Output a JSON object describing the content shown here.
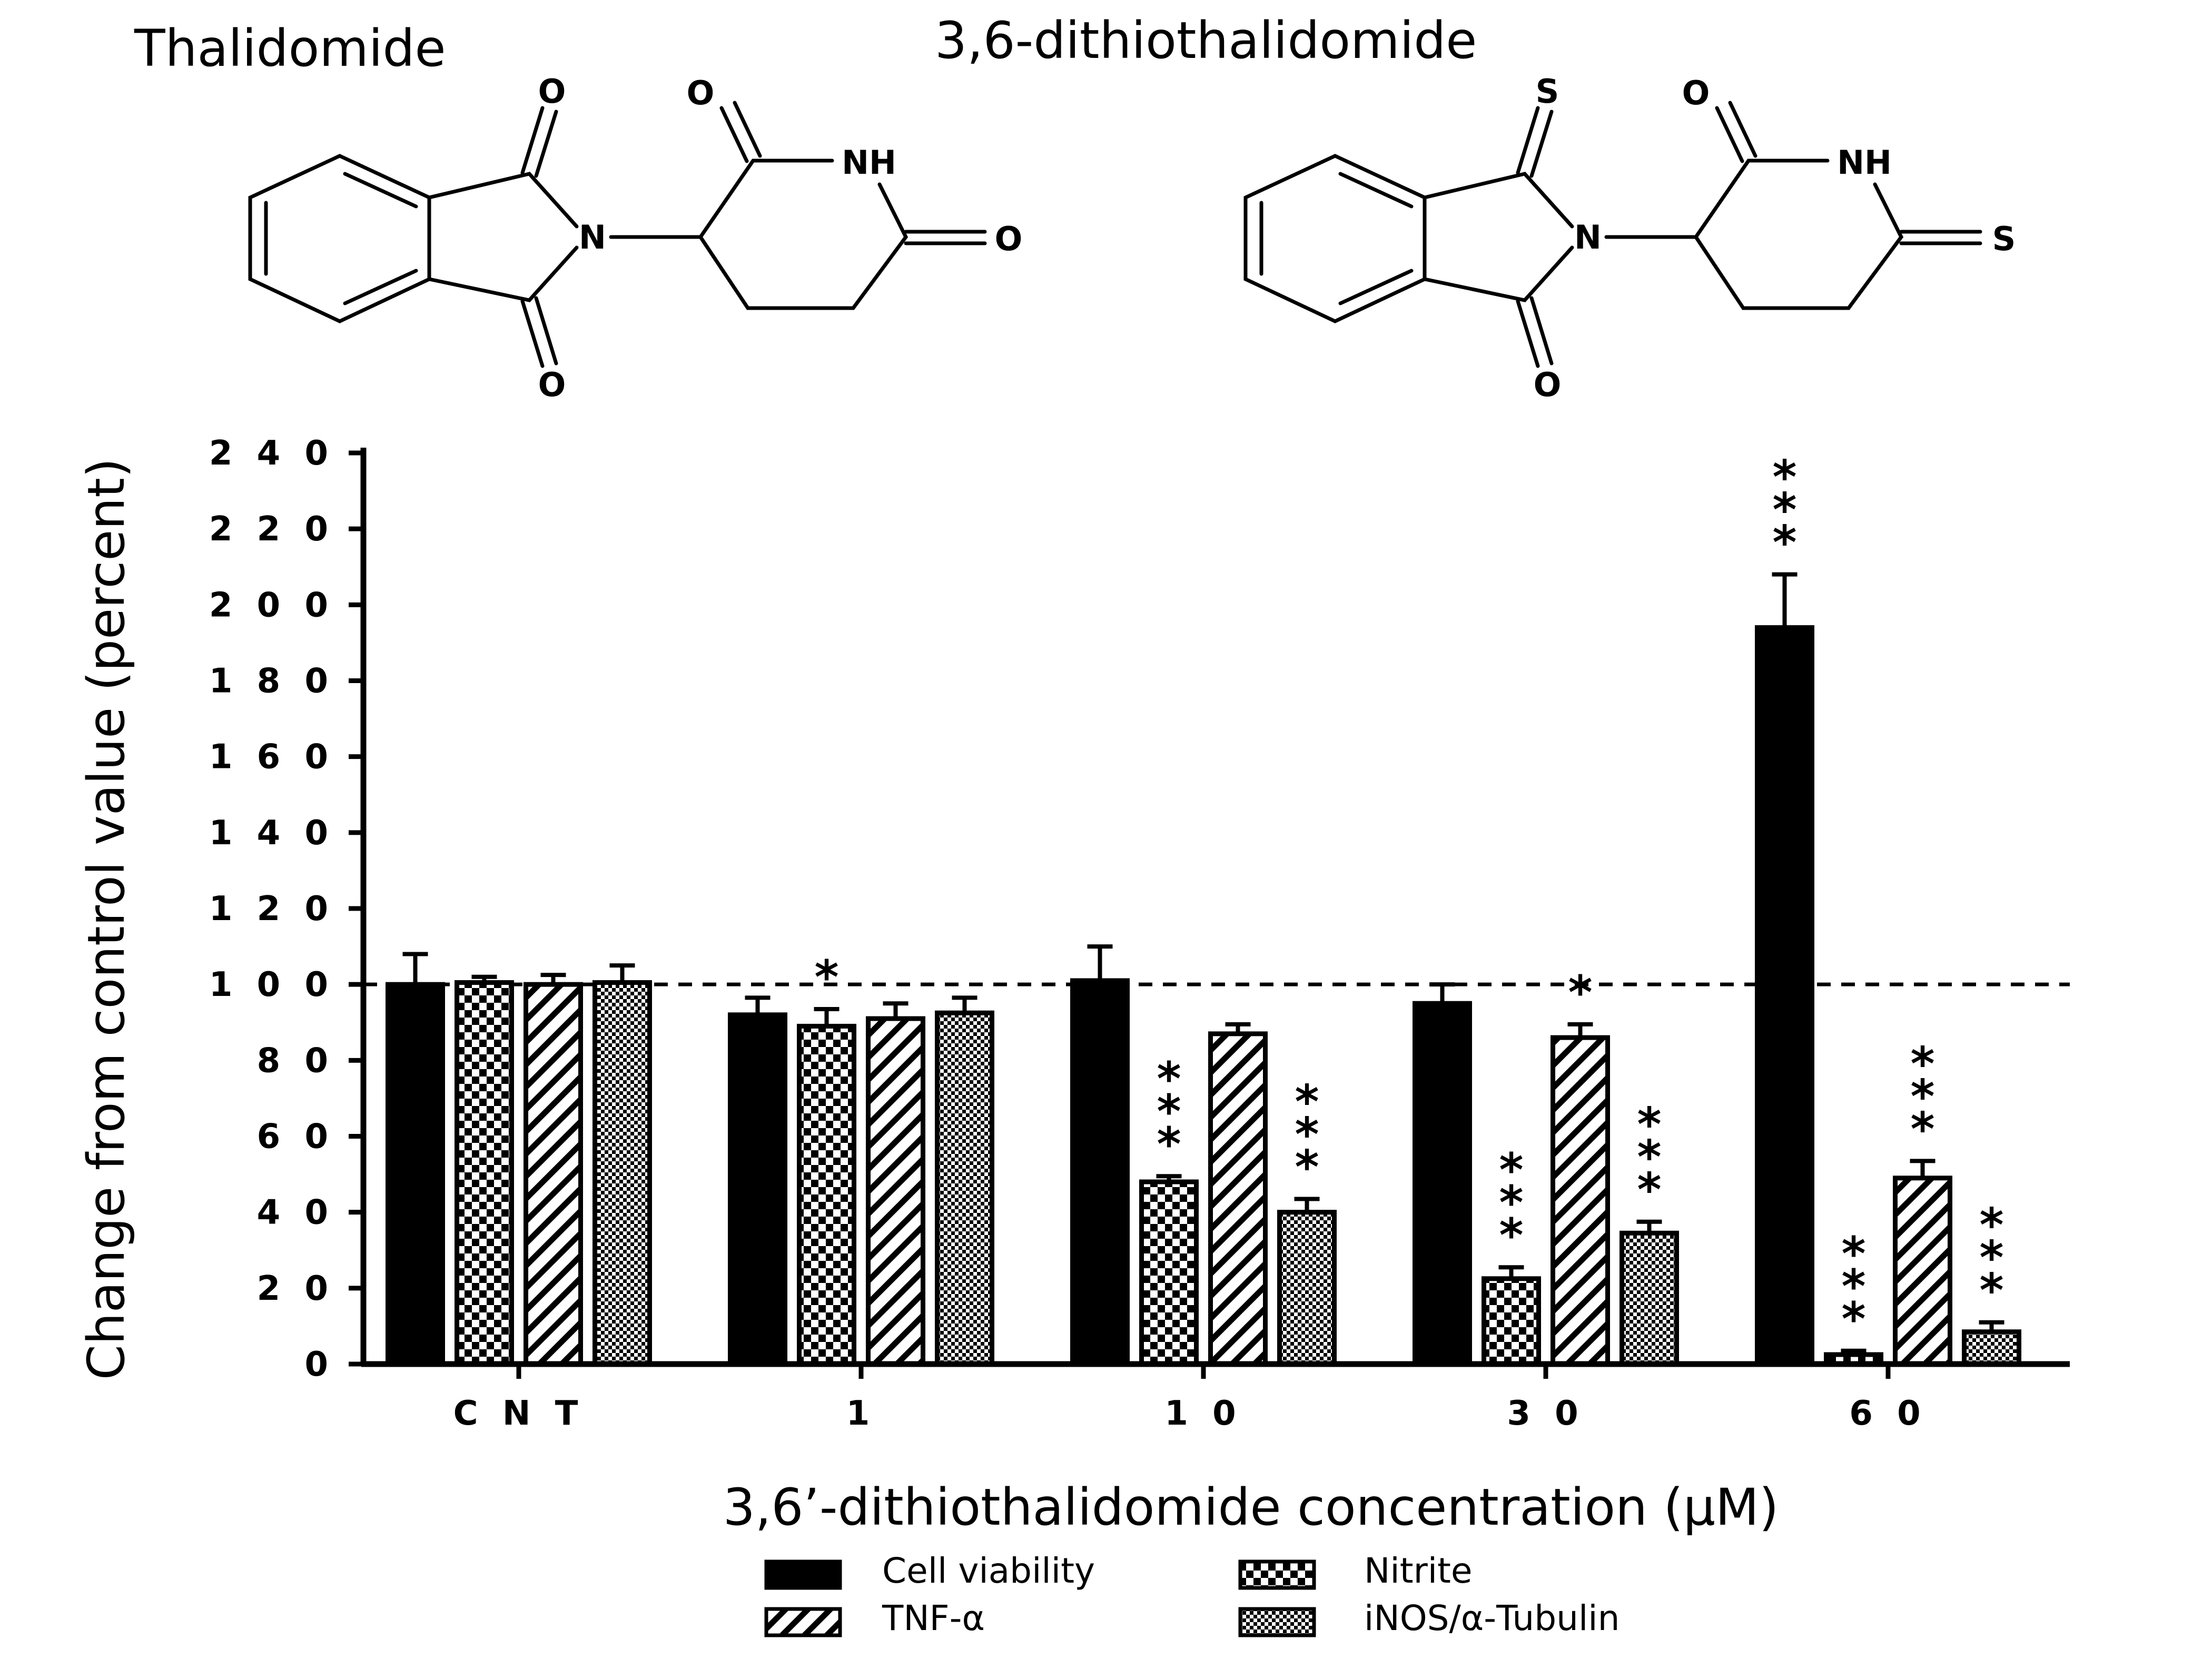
{
  "structures": [
    {
      "name": "Thalidomide",
      "atoms": {
        "top_carbonyl": "O",
        "bottom_carbonyl": "O",
        "imide_n": "N",
        "ring_carbonyl_top": "O",
        "ring_nh": "NH",
        "ring_carbonyl_right": "O"
      }
    },
    {
      "name": "3,6-dithiothalidomide",
      "atoms": {
        "top_carbonyl": "S",
        "bottom_carbonyl": "O",
        "imide_n": "N",
        "ring_carbonyl_top": "O",
        "ring_nh": "NH",
        "ring_carbonyl_right": "S"
      }
    }
  ],
  "chart_data": {
    "type": "bar",
    "ylabel": "Change from control value (percent)",
    "xlabel": "3,6’-dithiothalidomide concentration (μM)",
    "categories": [
      "C N T",
      "1",
      "1 0",
      "3 0",
      "6 0"
    ],
    "ylim": [
      0,
      240
    ],
    "yticks": [
      0,
      20,
      40,
      60,
      80,
      100,
      120,
      140,
      160,
      180,
      200,
      220,
      240
    ],
    "ytick_labels": [
      "0",
      "2 0",
      "4 0",
      "6 0",
      "8 0",
      "1 0 0",
      "1 2 0",
      "1 4 0",
      "1 6 0",
      "1 8 0",
      "2 0 0",
      "2 2 0",
      "2 4 0"
    ],
    "reference_line": 100,
    "series": [
      {
        "name": "Cell viability",
        "pattern": "solid",
        "values": [
          100,
          92,
          101,
          95,
          194
        ],
        "errors": [
          8,
          4.5,
          9,
          5,
          14
        ],
        "significance": [
          "",
          "",
          "",
          "",
          "***"
        ]
      },
      {
        "name": "Nitrite",
        "pattern": "checker",
        "values": [
          100.5,
          89,
          48,
          22.5,
          2.5
        ],
        "errors": [
          1.5,
          4.5,
          1.5,
          3,
          1
        ],
        "significance": [
          "",
          "*",
          "***",
          "***",
          "***"
        ]
      },
      {
        "name": "TNF-α",
        "pattern": "diagonal",
        "values": [
          100,
          91,
          87,
          86,
          49
        ],
        "errors": [
          2.5,
          4,
          2.5,
          3.5,
          4.5
        ],
        "significance": [
          "",
          "",
          "",
          "*",
          "***"
        ]
      },
      {
        "name": "iNOS/α-Tubulin",
        "pattern": "fine-checker",
        "values": [
          100.5,
          92.5,
          40,
          34.5,
          8.5
        ],
        "errors": [
          4.5,
          4,
          3.5,
          3,
          2.5
        ],
        "significance": [
          "",
          "",
          "***",
          "***",
          "***"
        ]
      }
    ]
  }
}
